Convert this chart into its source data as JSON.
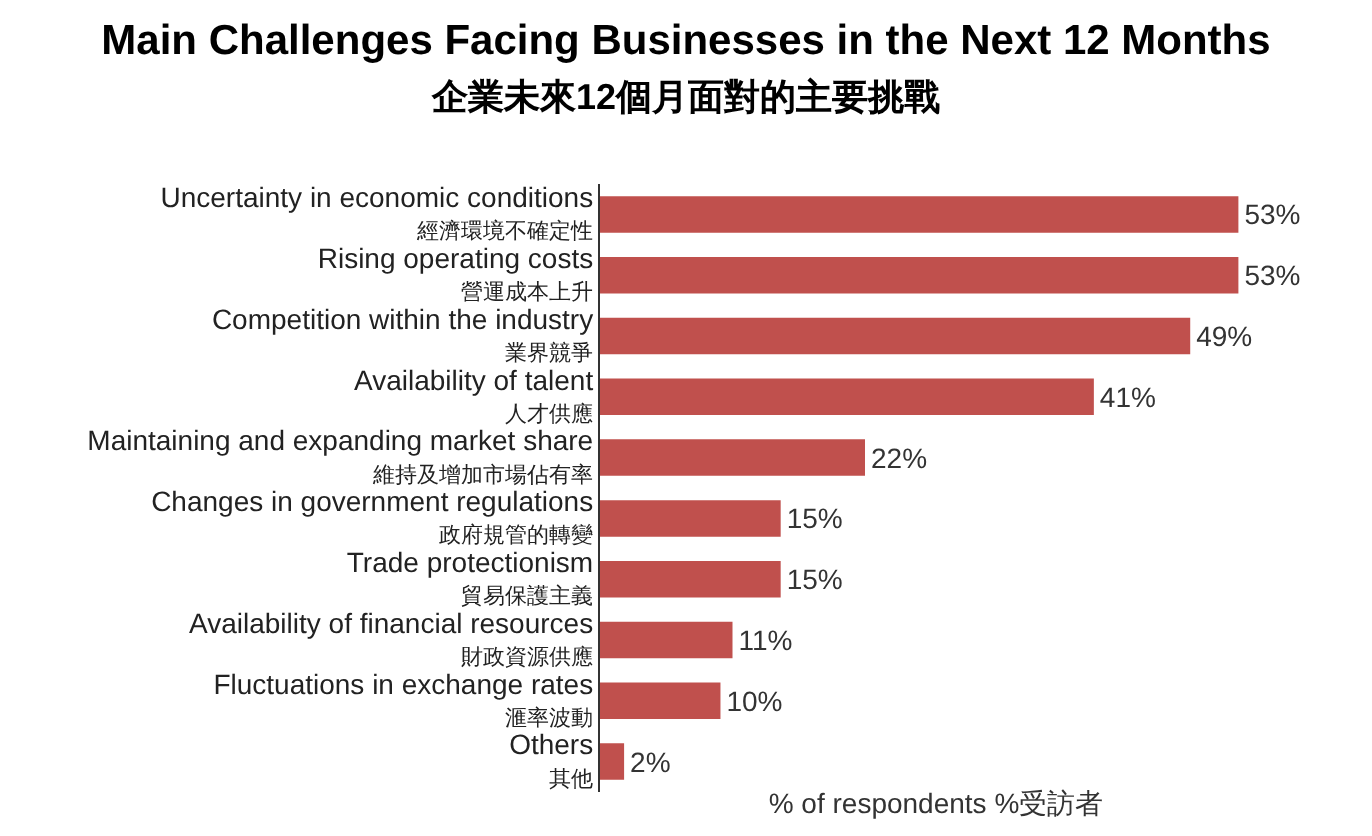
{
  "chart_data": {
    "type": "bar",
    "orientation": "horizontal",
    "title": "Main Challenges Facing Businesses in the Next 12 Months",
    "subtitle": "企業未來12個月面對的主要挑戰",
    "xlabel": "% of respondents %受訪者",
    "categories": [
      "Uncertainty in economic conditions\n經濟環境不確定性",
      "Rising operating costs\n營運成本上升",
      "Competition within the industry\n業界競爭",
      "Availability of talent\n人才供應",
      "Maintaining and expanding market share\n維持及增加市場佔有率",
      "Changes in government regulations\n政府規管的轉變",
      "Trade protectionism\n貿易保護主義",
      "Availability of financial resources\n財政資源供應",
      "Fluctuations in exchange rates\n滙率波動",
      "Others\n其他"
    ],
    "values": [
      53,
      53,
      49,
      41,
      22,
      15,
      15,
      11,
      10,
      2
    ],
    "value_labels": [
      "53%",
      "53%",
      "49%",
      "41%",
      "22%",
      "15%",
      "15%",
      "11%",
      "10%",
      "2%"
    ],
    "color": "#c0504d",
    "grid": false
  }
}
